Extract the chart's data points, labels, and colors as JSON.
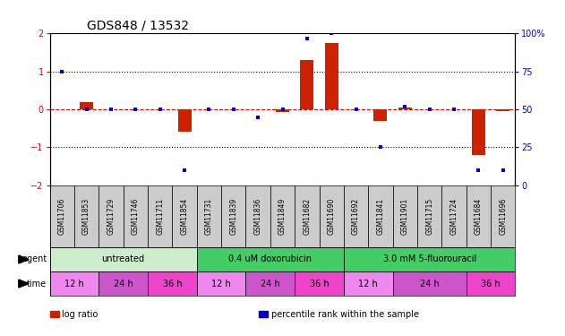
{
  "title": "GDS848 / 13532",
  "samples": [
    "GSM11706",
    "GSM11853",
    "GSM11729",
    "GSM11746",
    "GSM11711",
    "GSM11854",
    "GSM11731",
    "GSM11839",
    "GSM11836",
    "GSM11849",
    "GSM11682",
    "GSM11690",
    "GSM11692",
    "GSM11841",
    "GSM11901",
    "GSM11715",
    "GSM11724",
    "GSM11684",
    "GSM11696"
  ],
  "log_ratio": [
    0.0,
    0.2,
    0.0,
    0.0,
    0.0,
    -0.6,
    0.0,
    0.0,
    0.0,
    -0.08,
    1.3,
    1.75,
    0.0,
    -0.3,
    0.05,
    0.0,
    0.0,
    -1.2,
    -0.05
  ],
  "percentile_rank": [
    75,
    50,
    50,
    50,
    50,
    10,
    50,
    50,
    45,
    50,
    97,
    100,
    50,
    25,
    52,
    50,
    50,
    10,
    10
  ],
  "ylim_left": [
    -2,
    2
  ],
  "ylim_right": [
    0,
    100
  ],
  "yticks_left": [
    -2,
    -1,
    0,
    1,
    2
  ],
  "yticks_right": [
    0,
    25,
    50,
    75,
    100
  ],
  "yticklabels_right": [
    "0",
    "25",
    "50",
    "75",
    "100%"
  ],
  "hline_dotted_vals": [
    -1,
    1
  ],
  "hline_zero_color": "#dd0000",
  "bar_color": "#cc2200",
  "dot_color": "#0000cc",
  "bar_width": 0.55,
  "agent_groups": [
    {
      "label": "untreated",
      "start": 0,
      "end": 6,
      "color": "#cceecc"
    },
    {
      "label": "0.4 uM doxorubicin",
      "start": 6,
      "end": 12,
      "color": "#44cc66"
    },
    {
      "label": "3.0 mM 5-fluorouracil",
      "start": 12,
      "end": 19,
      "color": "#44cc66"
    }
  ],
  "time_groups": [
    {
      "label": "12 h",
      "start": 0,
      "end": 2,
      "color": "#ee88ee"
    },
    {
      "label": "24 h",
      "start": 2,
      "end": 4,
      "color": "#cc55cc"
    },
    {
      "label": "36 h",
      "start": 4,
      "end": 6,
      "color": "#ee44cc"
    },
    {
      "label": "12 h",
      "start": 6,
      "end": 8,
      "color": "#ee88ee"
    },
    {
      "label": "24 h",
      "start": 8,
      "end": 10,
      "color": "#cc55cc"
    },
    {
      "label": "36 h",
      "start": 10,
      "end": 12,
      "color": "#ee44cc"
    },
    {
      "label": "12 h",
      "start": 12,
      "end": 14,
      "color": "#ee88ee"
    },
    {
      "label": "24 h",
      "start": 14,
      "end": 17,
      "color": "#cc55cc"
    },
    {
      "label": "36 h",
      "start": 17,
      "end": 19,
      "color": "#ee44cc"
    }
  ],
  "xlabel_agent": "agent",
  "xlabel_time": "time",
  "legend_items": [
    {
      "label": "log ratio",
      "color": "#cc2200"
    },
    {
      "label": "percentile rank within the sample",
      "color": "#0000cc"
    }
  ],
  "sample_box_color": "#cccccc",
  "left_axis_color": "#cc0000",
  "right_axis_color": "#0000cc",
  "title_fontsize": 10,
  "tick_fontsize": 7,
  "label_fontsize": 7
}
